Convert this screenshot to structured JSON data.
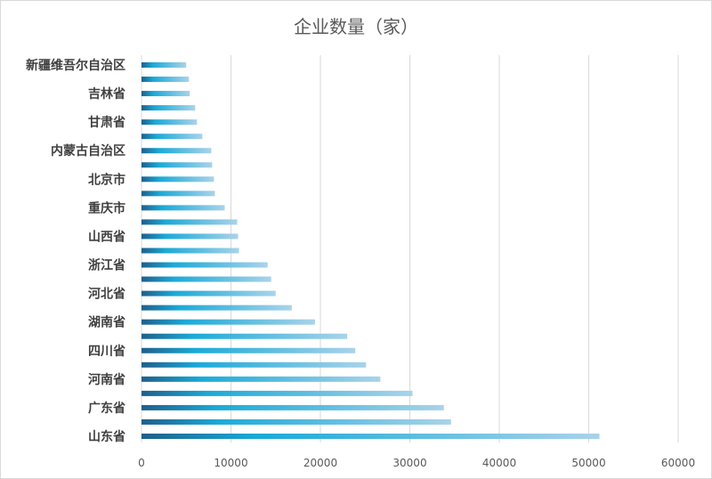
{
  "chart_data": {
    "type": "bar",
    "orientation": "horizontal",
    "title": "企业数量（家）",
    "xlim": [
      0,
      60000
    ],
    "x_ticks": [
      "0",
      "10000",
      "20000",
      "30000",
      "40000",
      "50000",
      "60000"
    ],
    "grid": true,
    "categories": [
      "山东省",
      "",
      "广东省",
      "",
      "河南省",
      "",
      "四川省",
      "",
      "湖南省",
      "",
      "河北省",
      "",
      "浙江省",
      "",
      "山西省",
      "",
      "重庆市",
      "",
      "北京市",
      "",
      "内蒙古自治区",
      "",
      "甘肃省",
      "",
      "吉林省",
      "",
      "新疆维吾尔自治区"
    ],
    "values": [
      51200,
      34600,
      33800,
      30300,
      26700,
      25100,
      23900,
      23000,
      19400,
      16800,
      15000,
      14500,
      14100,
      10900,
      10800,
      10700,
      9300,
      8200,
      8100,
      7900,
      7800,
      6800,
      6200,
      6000,
      5400,
      5300,
      5000
    ],
    "bar_colors": {
      "start": "#1f5f8b",
      "mid": "#1aaad8",
      "end": "#a9d3ea"
    },
    "grid_color": "#d9d9d9"
  }
}
